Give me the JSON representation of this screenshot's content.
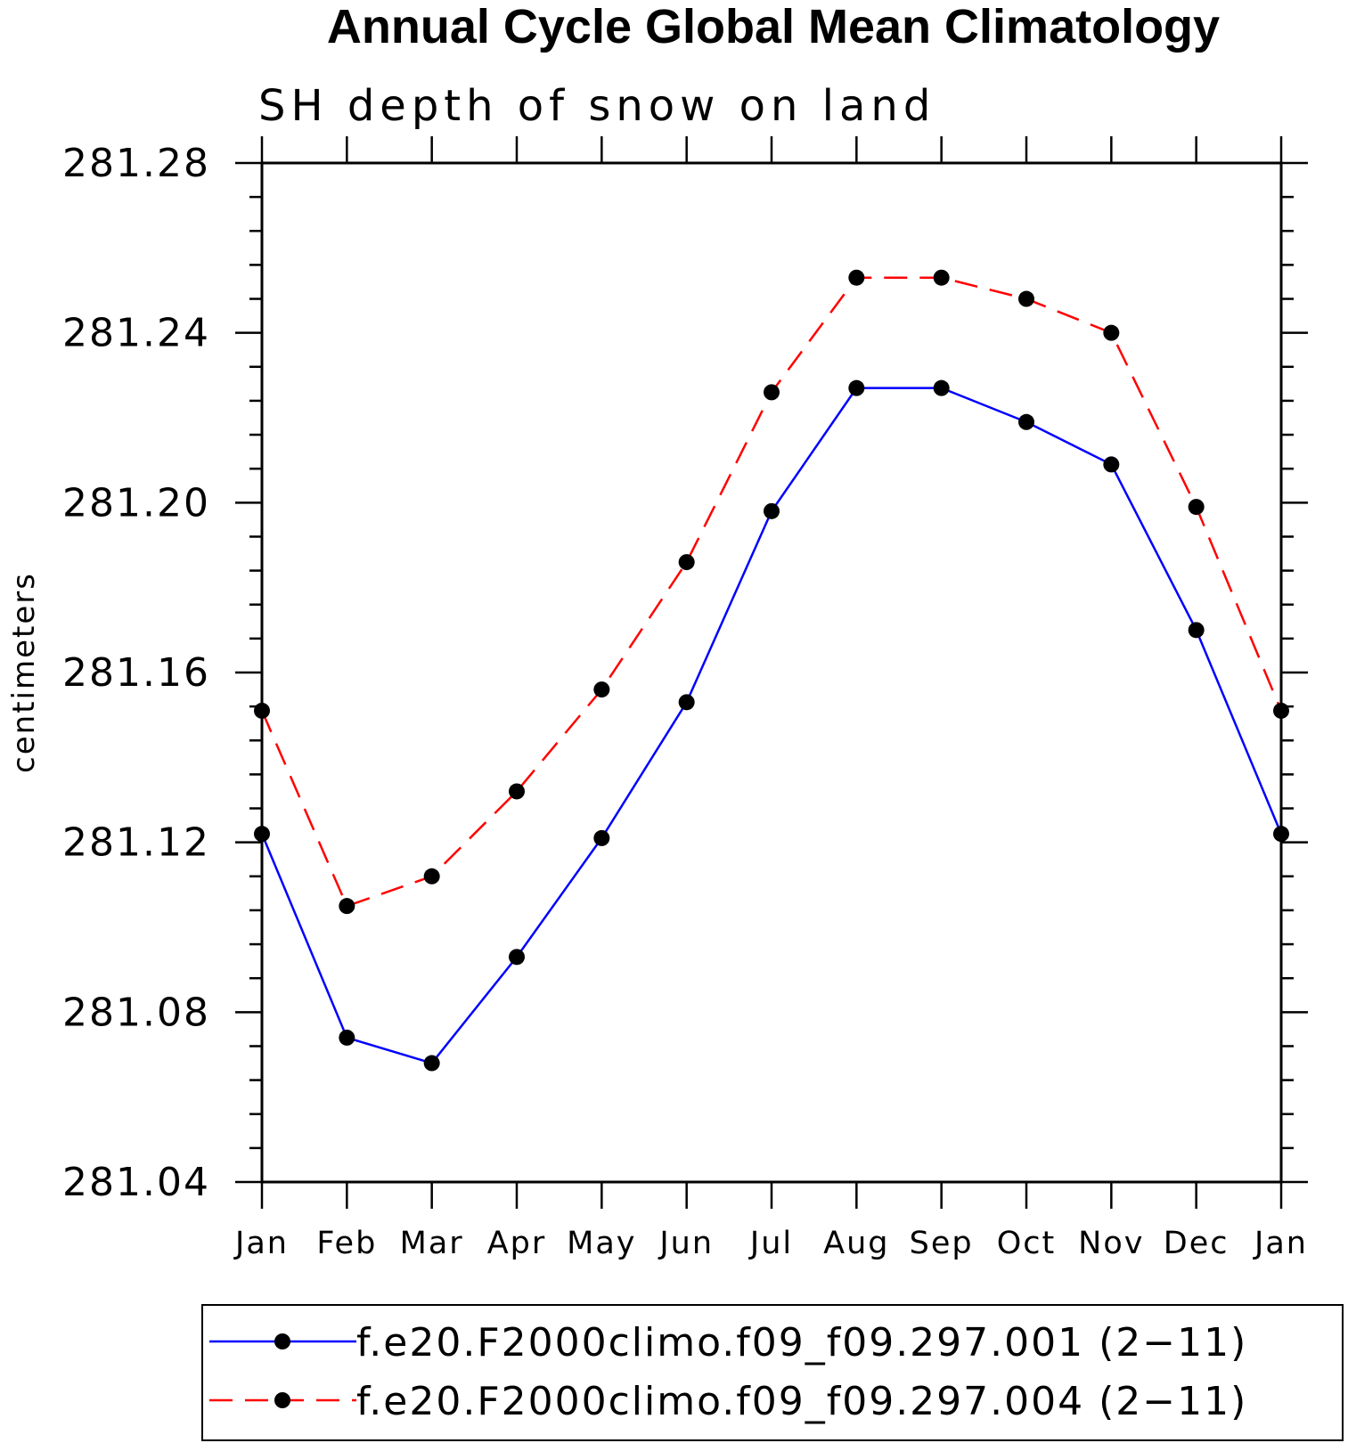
{
  "chart_data": {
    "type": "line",
    "title": "Annual Cycle Global Mean Climatology",
    "subtitle": "SH depth of snow on land",
    "ylabel": "centimeters",
    "xlabel": "",
    "categories": [
      "Jan",
      "Feb",
      "Mar",
      "Apr",
      "May",
      "Jun",
      "Jul",
      "Aug",
      "Sep",
      "Oct",
      "Nov",
      "Dec",
      "Jan"
    ],
    "ylim": [
      281.04,
      281.28
    ],
    "yticks": [
      "281.04",
      "281.08",
      "281.12",
      "281.16",
      "281.20",
      "281.24",
      "281.28"
    ],
    "series": [
      {
        "name": "f.e20.F2000climo.f09_f09.297.001 (2−11)",
        "color": "#0000ff",
        "dash": "solid",
        "values": [
          281.122,
          281.074,
          281.068,
          281.093,
          281.121,
          281.153,
          281.198,
          281.227,
          281.227,
          281.219,
          281.209,
          281.17,
          281.122
        ]
      },
      {
        "name": "f.e20.F2000climo.f09_f09.297.004 (2−11)",
        "color": "#ff0000",
        "dash": "dashed",
        "values": [
          281.151,
          281.105,
          281.112,
          281.132,
          281.156,
          281.186,
          281.226,
          281.253,
          281.253,
          281.248,
          281.24,
          281.199,
          281.151
        ]
      }
    ],
    "legend_position": "bottom"
  }
}
